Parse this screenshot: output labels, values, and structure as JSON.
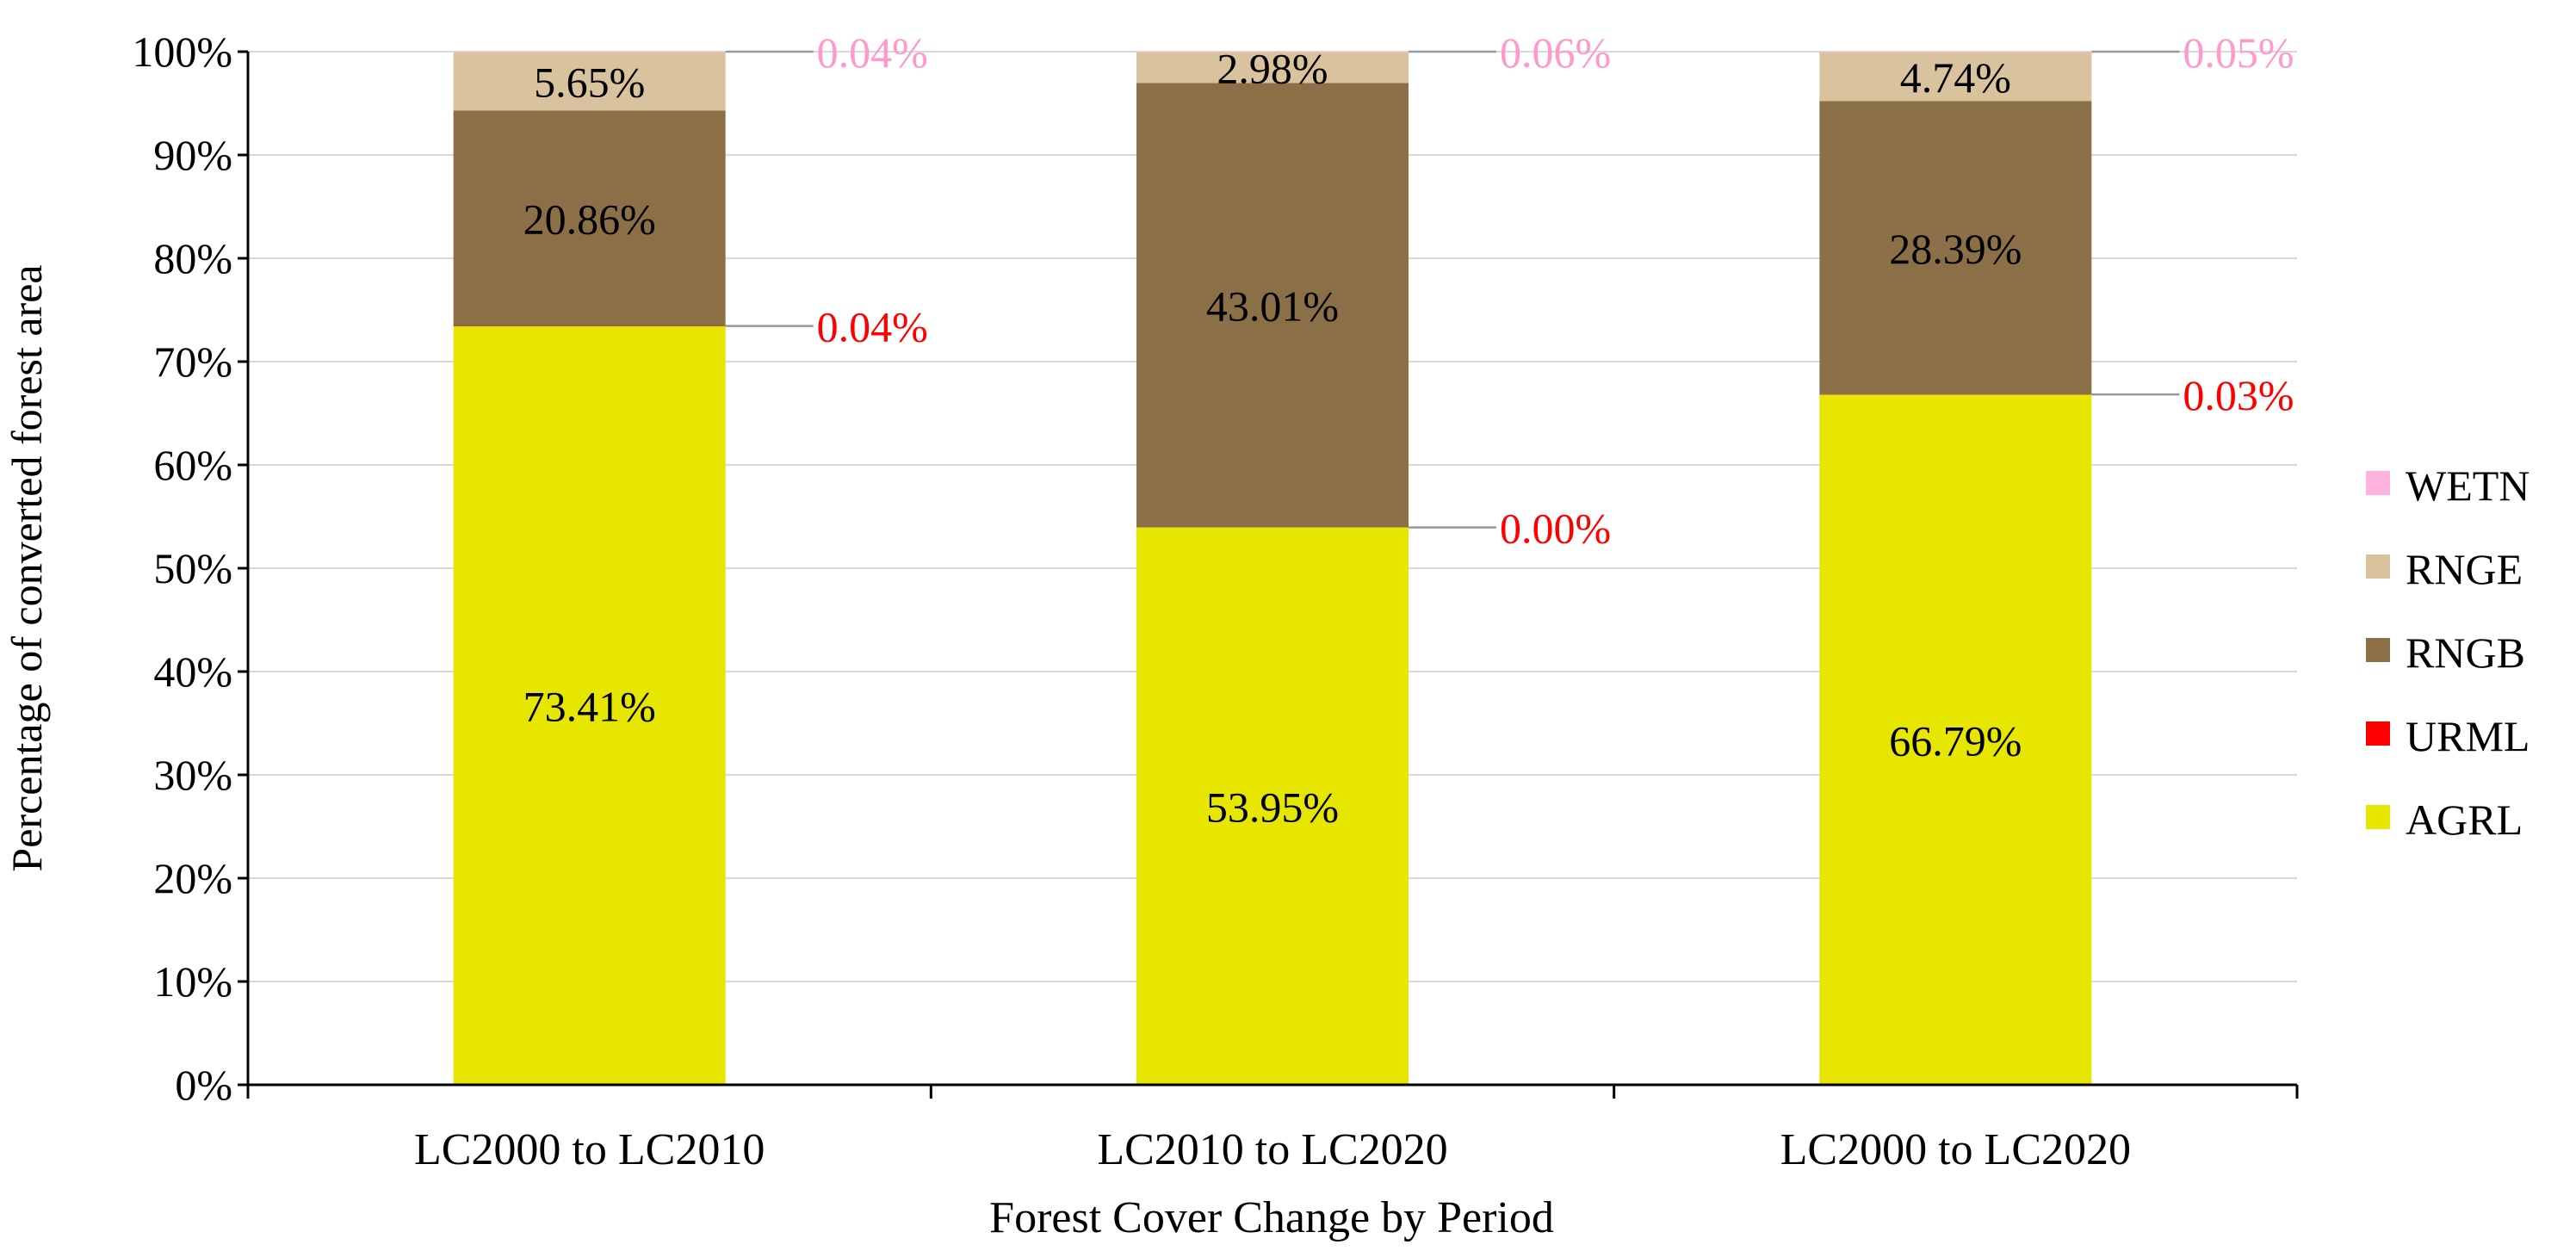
{
  "chart_data": {
    "type": "bar",
    "stacked": true,
    "xlabel": "Forest Cover Change by Period",
    "ylabel": "Percentage of converted forest area",
    "ylim": [
      0,
      100
    ],
    "yticks": [
      "0%",
      "10%",
      "20%",
      "30%",
      "40%",
      "50%",
      "60%",
      "70%",
      "80%",
      "90%",
      "100%"
    ],
    "grid": true,
    "legend_position": "right",
    "categories": [
      "LC2000 to LC2010",
      "LC2010 to LC2020",
      "LC2000 to LC2020"
    ],
    "series": [
      {
        "name": "AGRL",
        "color": "#e6e600",
        "values": [
          73.41,
          53.95,
          66.79
        ],
        "labels": [
          "73.41%",
          "53.95%",
          "66.79%"
        ],
        "label_color": "#000000",
        "label_style": "inside"
      },
      {
        "name": "URML",
        "color": "#ff0000",
        "values": [
          0.04,
          0.0,
          0.03
        ],
        "labels": [
          "0.04%",
          "0.00%",
          "0.03%"
        ],
        "label_color": "#ff0000",
        "label_style": "callout"
      },
      {
        "name": "RNGB",
        "color": "#8b6f47",
        "values": [
          20.86,
          43.01,
          28.39
        ],
        "labels": [
          "20.86%",
          "43.01%",
          "28.39%"
        ],
        "label_color": "#000000",
        "label_style": "inside"
      },
      {
        "name": "RNGE",
        "color": "#d9c29e",
        "values": [
          5.65,
          2.98,
          4.74
        ],
        "labels": [
          "5.65%",
          "2.98%",
          "4.74%"
        ],
        "label_color": "#000000",
        "label_style": "inside"
      },
      {
        "name": "WETN",
        "color": "#ffb3de",
        "values": [
          0.04,
          0.06,
          0.05
        ],
        "labels": [
          "0.04%",
          "0.06%",
          "0.05%"
        ],
        "label_color": "#ff99cc",
        "label_style": "callout"
      }
    ],
    "legend_order": [
      "WETN",
      "RNGE",
      "RNGB",
      "URML",
      "AGRL"
    ]
  }
}
